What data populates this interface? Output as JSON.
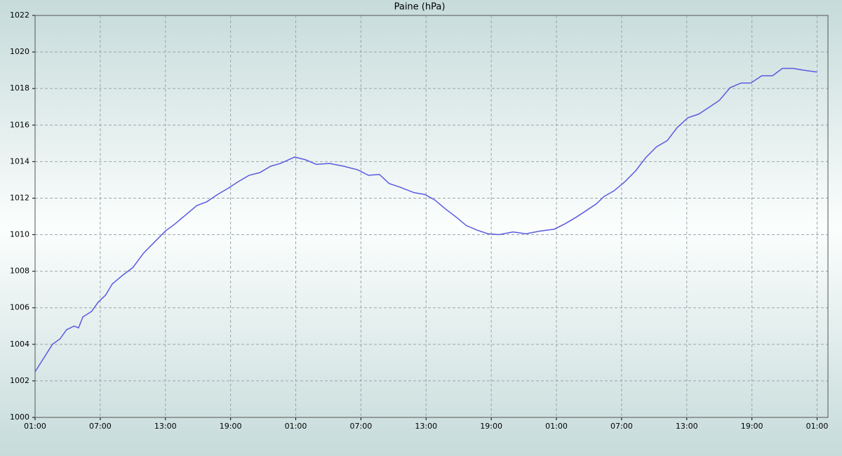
{
  "chart_data": {
    "type": "line",
    "title": "Paine (hPa)",
    "x": [
      0,
      1.6,
      2.3,
      2.9,
      3.6,
      4.0,
      4.4,
      5.2,
      5.8,
      6.5,
      7.1,
      8.1,
      9.0,
      10.0,
      11.0,
      12.0,
      12.9,
      13.9,
      14.9,
      15.8,
      16.8,
      17.8,
      18.7,
      19.7,
      20.7,
      21.7,
      22.6,
      23.9,
      24.9,
      25.9,
      27.1,
      28.4,
      29.7,
      30.7,
      31.7,
      32.6,
      33.6,
      34.9,
      35.9,
      36.8,
      37.8,
      38.8,
      39.7,
      40.7,
      41.7,
      42.7,
      44.0,
      45.2,
      46.5,
      47.8,
      48.8,
      49.8,
      50.7,
      51.7,
      52.4,
      53.3,
      54.3,
      55.3,
      56.2,
      57.2,
      58.2,
      59.1,
      60.1,
      61.1,
      62.0,
      63.0,
      64.0,
      65.0,
      65.9,
      66.9,
      67.9,
      68.8,
      69.8,
      70.8,
      72.0
    ],
    "series": [
      {
        "name": "Paine",
        "color": "#5a5ae0",
        "values": [
          1002.5,
          1004.0,
          1004.3,
          1004.8,
          1005.0,
          1004.9,
          1005.5,
          1005.8,
          1006.3,
          1006.7,
          1007.3,
          1007.8,
          1008.2,
          1009.0,
          1009.6,
          1010.2,
          1010.6,
          1011.1,
          1011.6,
          1011.8,
          1012.2,
          1012.55,
          1012.9,
          1013.25,
          1013.4,
          1013.75,
          1013.9,
          1014.25,
          1014.1,
          1013.85,
          1013.9,
          1013.75,
          1013.55,
          1013.25,
          1013.3,
          1012.8,
          1012.6,
          1012.3,
          1012.2,
          1011.9,
          1011.4,
          1010.95,
          1010.5,
          1010.25,
          1010.05,
          1010.0,
          1010.15,
          1010.05,
          1010.2,
          1010.3,
          1010.6,
          1010.95,
          1011.3,
          1011.7,
          1012.1,
          1012.4,
          1012.9,
          1013.5,
          1014.2,
          1014.8,
          1015.15,
          1015.85,
          1016.4,
          1016.6,
          1016.95,
          1017.35,
          1018.05,
          1018.3,
          1018.3,
          1018.7,
          1018.7,
          1019.1,
          1019.1,
          1019.0,
          1018.9
        ]
      }
    ],
    "xlim": [
      0,
      73
    ],
    "xticks": [
      {
        "value": 0,
        "label": "01:00"
      },
      {
        "value": 6,
        "label": "07:00"
      },
      {
        "value": 12,
        "label": "13:00"
      },
      {
        "value": 18,
        "label": "19:00"
      },
      {
        "value": 24,
        "label": "01:00"
      },
      {
        "value": 30,
        "label": "07:00"
      },
      {
        "value": 36,
        "label": "13:00"
      },
      {
        "value": 42,
        "label": "19:00"
      },
      {
        "value": 48,
        "label": "01:00"
      },
      {
        "value": 54,
        "label": "07:00"
      },
      {
        "value": 60,
        "label": "13:00"
      },
      {
        "value": 66,
        "label": "19:00"
      },
      {
        "value": 72,
        "label": "01:00"
      }
    ],
    "ylim": [
      1000,
      1022
    ],
    "yticks": [
      1000,
      1002,
      1004,
      1006,
      1008,
      1010,
      1012,
      1014,
      1016,
      1018,
      1020,
      1022
    ],
    "grid": true
  }
}
